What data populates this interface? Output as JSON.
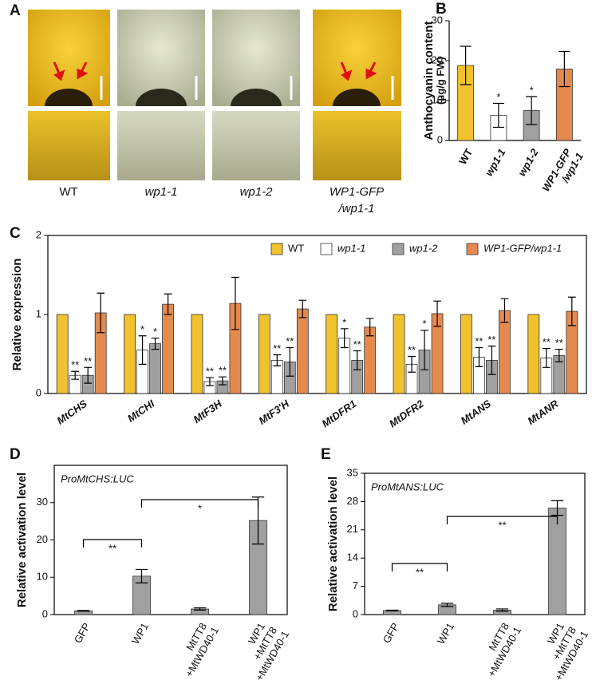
{
  "panel_a": {
    "label": "A",
    "captions": [
      [
        "WT"
      ],
      [
        "wp1-1"
      ],
      [
        "wp1-2"
      ],
      [
        "WP1-GFP",
        "/wp1-1"
      ]
    ]
  },
  "chart_data": [
    {
      "type": "bar",
      "panel": "B",
      "ylabel": "Anthocyanin content",
      "ylabel_unit": "(μg/g FW)",
      "categories": [
        [
          "WT"
        ],
        [
          "wp1-1"
        ],
        [
          "wp1-2"
        ],
        [
          "WP1-GFP",
          "/wp1-1"
        ]
      ],
      "values": [
        18.8,
        6.3,
        7.5,
        17.9
      ],
      "errors": [
        4.8,
        3.0,
        3.5,
        4.4
      ],
      "colors": [
        "#f2c12e",
        "#ffffff",
        "#a0a0a0",
        "#e58a4e"
      ],
      "significance": [
        null,
        "*",
        "*",
        null
      ],
      "ylim": [
        0,
        30
      ],
      "yticks": [
        0,
        10,
        20,
        30
      ]
    },
    {
      "type": "bar",
      "panel": "C",
      "ylabel": "Relative expression",
      "categories": [
        [
          "MtCHS"
        ],
        [
          "MtCHI"
        ],
        [
          "MtF3H"
        ],
        [
          "MtF3'H"
        ],
        [
          "MtDFR1"
        ],
        [
          "MtDFR2"
        ],
        [
          "MtANS"
        ],
        [
          "MtANR"
        ]
      ],
      "series": [
        {
          "name": "WT",
          "color": "#f2c12e",
          "values": [
            1,
            1,
            1,
            1,
            1,
            1,
            1,
            1
          ]
        },
        {
          "name": "wp1-1",
          "color": "#ffffff",
          "values": [
            0.23,
            0.55,
            0.15,
            0.42,
            0.7,
            0.37,
            0.46,
            0.45
          ],
          "errors": [
            0.05,
            0.18,
            0.05,
            0.07,
            0.12,
            0.1,
            0.12,
            0.12
          ],
          "significance": [
            "**",
            "*",
            "**",
            "**",
            "*",
            "**",
            "**",
            "**"
          ]
        },
        {
          "name": "wp1-2",
          "color": "#a0a0a0",
          "values": [
            0.23,
            0.63,
            0.16,
            0.4,
            0.42,
            0.55,
            0.42,
            0.48
          ],
          "errors": [
            0.1,
            0.07,
            0.05,
            0.18,
            0.12,
            0.25,
            0.18,
            0.08
          ],
          "significance": [
            "**",
            "*",
            "**",
            "**",
            "**",
            "*",
            "**",
            "**"
          ]
        },
        {
          "name": "WP1-GFP/wp1-1",
          "color": "#e58a4e",
          "values": [
            1.02,
            1.13,
            1.14,
            1.07,
            0.84,
            1.01,
            1.05,
            1.04
          ],
          "errors": [
            0.25,
            0.13,
            0.33,
            0.11,
            0.11,
            0.16,
            0.15,
            0.18
          ]
        }
      ],
      "ylim": [
        0,
        2
      ],
      "yticks": [
        0,
        1,
        2
      ]
    },
    {
      "type": "bar",
      "panel": "D",
      "ylabel": "Relative activation level",
      "annotation": "ProMtCHS:LUC",
      "categories": [
        [
          "GFP"
        ],
        [
          "WP1"
        ],
        [
          "MtTT8",
          "+MtWD40-1"
        ],
        [
          "WP1",
          "+MtTT8",
          "+MtWD40-1"
        ]
      ],
      "values": [
        1,
        10.3,
        1.5,
        25.2
      ],
      "errors": [
        0.1,
        1.8,
        0.3,
        6.3
      ],
      "color": "#a0a0a0",
      "brackets": [
        "**",
        "*"
      ],
      "ylim": [
        0,
        40
      ],
      "yticks": [
        0,
        10,
        20,
        30
      ]
    },
    {
      "type": "bar",
      "panel": "E",
      "ylabel": "Relative activation level",
      "annotation": "ProMtANS:LUC",
      "categories": [
        [
          "GFP"
        ],
        [
          "WP1"
        ],
        [
          "MtTT8",
          "+MtWD40-1"
        ],
        [
          "WP1",
          "+MtTT8",
          "+MtWD40-1"
        ]
      ],
      "values": [
        1,
        2.4,
        1.1,
        26.4
      ],
      "errors": [
        0.1,
        0.4,
        0.3,
        1.8
      ],
      "color": "#a0a0a0",
      "brackets": [
        "**",
        "**"
      ],
      "ylim": [
        0,
        35
      ],
      "yticks": [
        0,
        7,
        14,
        21,
        28,
        35
      ]
    }
  ]
}
